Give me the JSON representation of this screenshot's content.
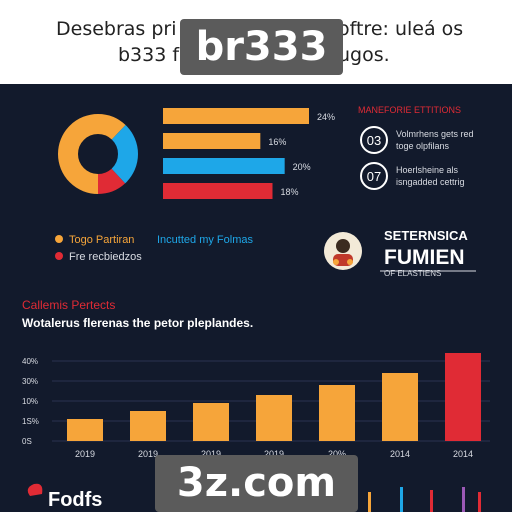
{
  "header": {
    "title_line1": "Desebras pri",
    "title_line1_right": "oftre: uleá os",
    "title_line2": "b333 f",
    "title_line2_right": "ugos."
  },
  "badges": {
    "top": "br333",
    "bottom": "3z.com"
  },
  "colors": {
    "background": "#121a2c",
    "orange": "#f6a53a",
    "blue": "#1ea7e8",
    "red": "#e02b35",
    "header_bg": "#ffffff",
    "badge_bg": "#5b5b5b"
  },
  "donut": {
    "slices": [
      {
        "value": 62,
        "color": "#f6a53a"
      },
      {
        "value": 26,
        "color": "#1ea7e8"
      },
      {
        "value": 12,
        "color": "#e02b35"
      }
    ]
  },
  "hbars": [
    {
      "value": 24,
      "label": "24%",
      "color": "#f6a53a"
    },
    {
      "value": 16,
      "label": "16%",
      "color": "#f6a53a"
    },
    {
      "value": 20,
      "label": "20%",
      "color": "#1ea7e8"
    },
    {
      "value": 18,
      "label": "18%",
      "color": "#e02b35"
    }
  ],
  "side_panel": {
    "heading": "MANEFORIE ETTITIONS",
    "items": [
      {
        "number": "03",
        "line1": "Volmrhens gets red",
        "line2": "toge olpfilans"
      },
      {
        "number": "07",
        "line1": "Hoerlsheine als",
        "line2": "isngadded cettrig"
      }
    ]
  },
  "legend": [
    {
      "text": "Togo Partiran",
      "text2": "Incutted my Folmas",
      "color": "#f6a53a"
    },
    {
      "text": "Fre recbiedzos",
      "color": "#e02b35"
    }
  ],
  "logo": {
    "line1": "SETERNSICA",
    "line2": "FUMIEN",
    "line3": "OF ELASTIENS"
  },
  "chart_data": {
    "type": "bar",
    "title": "Callemis Pertects",
    "subtitle": "Wotalerus flerenas the petor pleplandes.",
    "categories": [
      "2019",
      "2019",
      "2019",
      "2019",
      "20%",
      "2014",
      "2014"
    ],
    "values": [
      11,
      15,
      19,
      23,
      28,
      34,
      44
    ],
    "colors": [
      "#f6a53a",
      "#f6a53a",
      "#f6a53a",
      "#f6a53a",
      "#f6a53a",
      "#f6a53a",
      "#e02b35"
    ],
    "ytick_labels": [
      "0S",
      "1S%",
      "10%",
      "30%",
      "40%"
    ],
    "ylim": [
      0,
      50
    ]
  },
  "footer": {
    "brand": "Fodfs"
  }
}
